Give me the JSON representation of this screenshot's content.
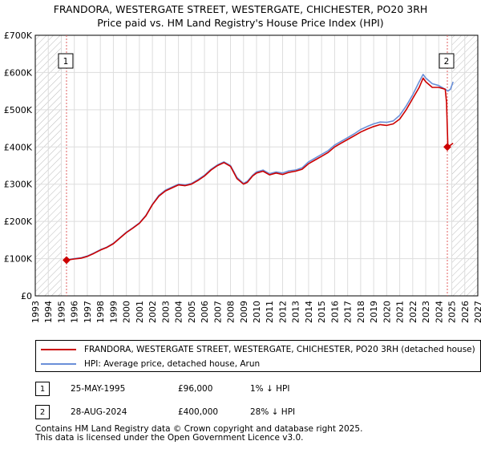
{
  "title_line1": "FRANDORA, WESTERGATE STREET, WESTERGATE, CHICHESTER, PO20 3RH",
  "title_line2": "Price paid vs. HM Land Registry's House Price Index (HPI)",
  "colors": {
    "price_paid": "#cc0000",
    "hpi": "#6a8fd8",
    "marker_line": "#e06060",
    "grid": "#dddddd",
    "hatch": "#aaaaaa"
  },
  "chart_data": {
    "type": "line",
    "x_range": [
      1993,
      2027
    ],
    "ylim": [
      0,
      700000
    ],
    "y_ticks": [
      0,
      100000,
      200000,
      300000,
      400000,
      500000,
      600000,
      700000
    ],
    "y_tick_labels": [
      "£0",
      "£100K",
      "£200K",
      "£300K",
      "£400K",
      "£500K",
      "£600K",
      "£700K"
    ],
    "x_ticks": [
      1993,
      1994,
      1995,
      1996,
      1997,
      1998,
      1999,
      2000,
      2001,
      2002,
      2003,
      2004,
      2005,
      2006,
      2007,
      2008,
      2009,
      2010,
      2011,
      2012,
      2013,
      2014,
      2015,
      2016,
      2017,
      2018,
      2019,
      2020,
      2021,
      2022,
      2023,
      2024,
      2025,
      2026,
      2027
    ],
    "hatched_regions": [
      [
        1993,
        1995.0
      ],
      [
        2025.0,
        2027
      ]
    ],
    "series": [
      {
        "name": "FRANDORA, WESTERGATE STREET, WESTERGATE, CHICHESTER, PO20 3RH (detached house)",
        "x": [
          1995.4,
          1996.0,
          1996.5,
          1997.0,
          1997.5,
          1998.0,
          1998.5,
          1999.0,
          1999.5,
          2000.0,
          2000.5,
          2001.0,
          2001.5,
          2002.0,
          2002.5,
          2003.0,
          2003.5,
          2004.0,
          2004.5,
          2005.0,
          2005.5,
          2006.0,
          2006.5,
          2007.0,
          2007.5,
          2008.0,
          2008.5,
          2009.0,
          2009.3,
          2009.7,
          2010.0,
          2010.5,
          2011.0,
          2011.5,
          2012.0,
          2012.5,
          2013.0,
          2013.5,
          2014.0,
          2014.5,
          2015.0,
          2015.5,
          2016.0,
          2016.5,
          2017.0,
          2017.5,
          2018.0,
          2018.5,
          2019.0,
          2019.5,
          2020.0,
          2020.5,
          2021.0,
          2021.5,
          2022.0,
          2022.5,
          2022.8,
          2023.0,
          2023.5,
          2024.0,
          2024.5,
          2024.6,
          2024.7,
          2024.9,
          2025.1
        ],
        "values": [
          96000,
          99000,
          101000,
          106000,
          114000,
          123000,
          130000,
          140000,
          155000,
          170000,
          182000,
          195000,
          215000,
          245000,
          268000,
          282000,
          290000,
          298000,
          296000,
          300000,
          310000,
          322000,
          338000,
          350000,
          358000,
          348000,
          315000,
          300000,
          305000,
          322000,
          330000,
          335000,
          325000,
          330000,
          326000,
          332000,
          335000,
          340000,
          355000,
          365000,
          375000,
          385000,
          400000,
          410000,
          420000,
          430000,
          440000,
          448000,
          455000,
          460000,
          458000,
          462000,
          475000,
          500000,
          530000,
          560000,
          585000,
          575000,
          560000,
          560000,
          555000,
          520000,
          400000,
          405000,
          410000
        ]
      },
      {
        "name": "HPI: Average price, detached house, Arun",
        "x": [
          1995.4,
          1996.0,
          1996.5,
          1997.0,
          1997.5,
          1998.0,
          1998.5,
          1999.0,
          1999.5,
          2000.0,
          2000.5,
          2001.0,
          2001.5,
          2002.0,
          2002.5,
          2003.0,
          2003.5,
          2004.0,
          2004.5,
          2005.0,
          2005.5,
          2006.0,
          2006.5,
          2007.0,
          2007.5,
          2008.0,
          2008.5,
          2009.0,
          2009.3,
          2009.7,
          2010.0,
          2010.5,
          2011.0,
          2011.5,
          2012.0,
          2012.5,
          2013.0,
          2013.5,
          2014.0,
          2014.5,
          2015.0,
          2015.5,
          2016.0,
          2016.5,
          2017.0,
          2017.5,
          2018.0,
          2018.5,
          2019.0,
          2019.5,
          2020.0,
          2020.5,
          2021.0,
          2021.5,
          2022.0,
          2022.5,
          2022.8,
          2023.0,
          2023.5,
          2024.0,
          2024.5,
          2024.7,
          2024.9,
          2025.1
        ],
        "values": [
          97000,
          100000,
          102000,
          107000,
          115000,
          124000,
          131000,
          141000,
          156000,
          171000,
          183000,
          196000,
          216000,
          246000,
          270000,
          284000,
          292000,
          300000,
          298000,
          302000,
          312000,
          324000,
          340000,
          352000,
          360000,
          350000,
          318000,
          302000,
          308000,
          324000,
          333000,
          338000,
          328000,
          333000,
          330000,
          336000,
          338000,
          344000,
          360000,
          370000,
          380000,
          390000,
          405000,
          415000,
          425000,
          435000,
          447000,
          455000,
          462000,
          467000,
          466000,
          470000,
          485000,
          510000,
          540000,
          575000,
          595000,
          585000,
          570000,
          565000,
          555000,
          550000,
          555000,
          575000
        ]
      }
    ],
    "annotations": [
      {
        "label": "1",
        "x": 1995.4,
        "y": 96000
      },
      {
        "label": "2",
        "x": 2024.66,
        "y": 400000
      }
    ]
  },
  "legend": {
    "price_paid": "FRANDORA, WESTERGATE STREET, WESTERGATE, CHICHESTER, PO20 3RH (detached house)",
    "hpi": "HPI: Average price, detached house, Arun"
  },
  "transactions": [
    {
      "num": "1",
      "date": "25-MAY-1995",
      "price": "£96,000",
      "hpi": "1% ↓ HPI"
    },
    {
      "num": "2",
      "date": "28-AUG-2024",
      "price": "£400,000",
      "hpi": "28% ↓ HPI"
    }
  ],
  "footer": {
    "line1": "Contains HM Land Registry data © Crown copyright and database right 2025.",
    "line2": "This data is licensed under the Open Government Licence v3.0."
  }
}
